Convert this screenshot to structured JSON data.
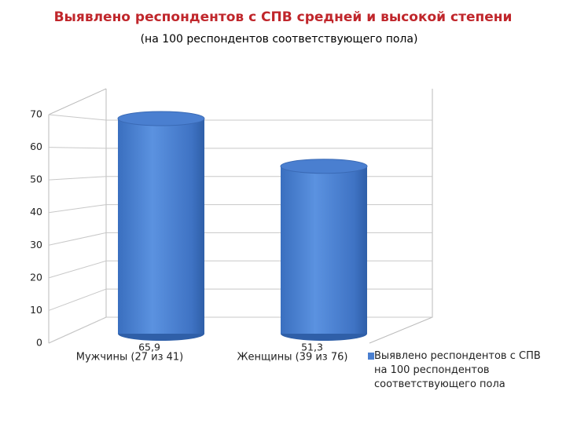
{
  "chart_data": {
    "type": "bar",
    "title": "Выявлено респондентов с СПВ средней и высокой степени",
    "subtitle": "(на 100 респондентов соответствующего пола)",
    "categories": [
      "Мужчины (27 из 41)",
      "Женщины (39 из 76)"
    ],
    "series": [
      {
        "name": "Выявлено респондентов с СПВ на 100 респондентов соответствующего пола",
        "color": "#4a7fd0",
        "values": [
          65.9,
          51.3
        ],
        "value_labels": [
          "65,9",
          "51,3"
        ]
      }
    ],
    "ylim": [
      0,
      70
    ],
    "yticks": [
      0,
      10,
      20,
      30,
      40,
      50,
      60,
      70
    ],
    "grid": true,
    "legend": "right"
  }
}
